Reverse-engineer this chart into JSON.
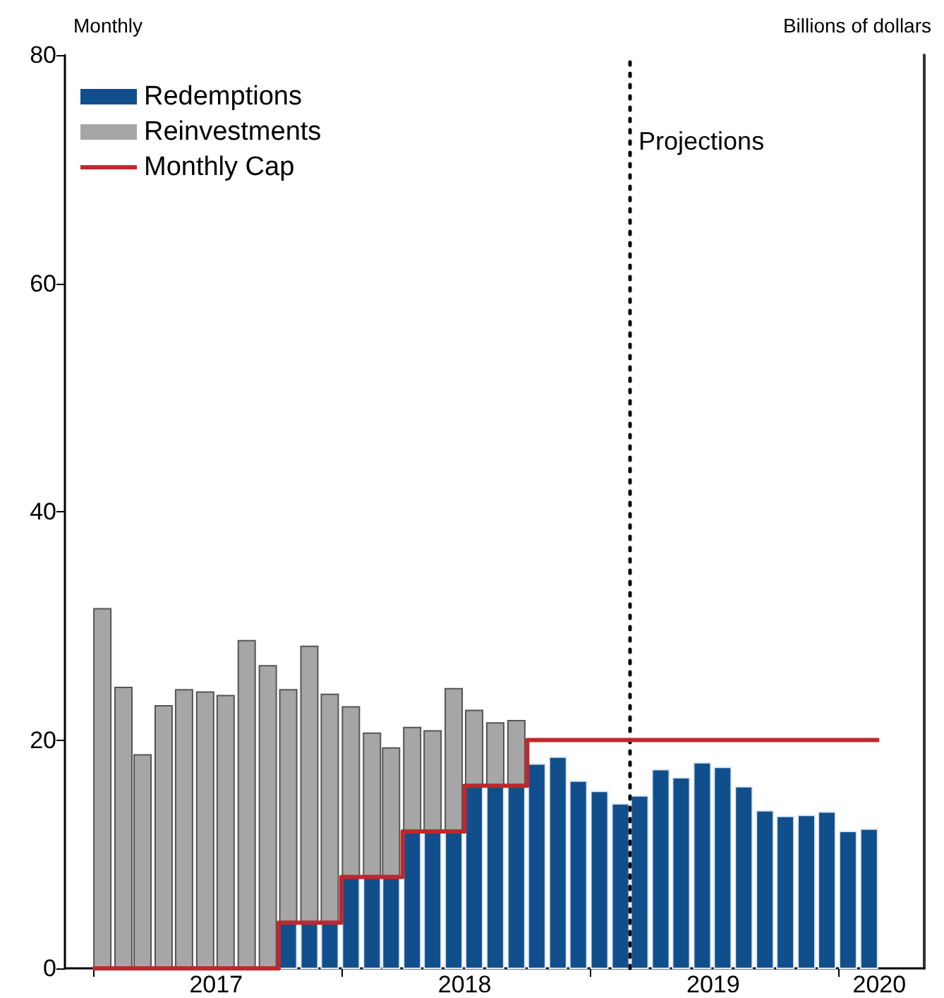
{
  "chart_data": {
    "type": "bar",
    "subtitle": "Monthly",
    "ylabel": "Billions of dollars",
    "stacked": true,
    "x": [
      "2017-01-15",
      "2017-02-15",
      "2017-03-15",
      "2017-04-15",
      "2017-05-15",
      "2017-06-15",
      "2017-07-15",
      "2017-08-15",
      "2017-09-15",
      "2017-10-15",
      "2017-11-15",
      "2017-12-15",
      "2018-01-15",
      "2018-02-15",
      "2018-03-15",
      "2018-04-15",
      "2018-05-15",
      "2018-06-15",
      "2018-07-15",
      "2018-08-15",
      "2018-09-15",
      "2018-10-15",
      "2018-11-15",
      "2018-12-15",
      "2019-01-15",
      "2019-02-15",
      "2019-03-15",
      "2019-04-15",
      "2019-05-15",
      "2019-06-15",
      "2019-07-15",
      "2019-08-15",
      "2019-09-15",
      "2019-10-15",
      "2019-11-15",
      "2019-12-15",
      "2020-01-15",
      "2020-02-15"
    ],
    "series": [
      {
        "name": "Redemptions",
        "color": "#114f8c",
        "values": [
          null,
          null,
          null,
          null,
          null,
          null,
          null,
          null,
          null,
          4,
          4,
          4,
          8,
          8,
          8,
          12,
          12,
          12,
          16,
          16,
          16,
          17.9,
          18.5,
          16.4,
          15.5,
          14.4,
          15.1,
          17.4,
          16.7,
          18.0,
          17.6,
          15.9,
          13.8,
          13.3,
          13.4,
          13.7,
          12.0,
          12.2
        ]
      },
      {
        "name": "Reinvestments",
        "color": "#a6a6a6",
        "values": [
          31.5,
          24.6,
          18.7,
          23.0,
          24.4,
          24.2,
          23.9,
          28.7,
          26.5,
          20.4,
          24.2,
          20.0,
          14.9,
          12.6,
          11.3,
          9.1,
          8.8,
          12.5,
          6.6,
          5.5,
          5.7,
          null,
          null,
          null,
          null,
          null,
          null,
          null,
          null,
          null,
          null,
          null,
          null,
          null,
          null,
          null,
          null,
          null
        ]
      },
      {
        "name": "Monthly Cap",
        "type": "step",
        "color": "#c0272d",
        "x": [
          "2017-01-01",
          "2017-10-01",
          "2018-01-01",
          "2018-04-01",
          "2018-07-01",
          "2018-10-01",
          "2020-03-01"
        ],
        "values": [
          0,
          4,
          8,
          12,
          16,
          20,
          20
        ]
      }
    ],
    "xlim": [
      "2016-11-21",
      "2020-05-06"
    ],
    "xticks": [
      {
        "value": "2017-01-01",
        "label": null
      },
      {
        "value": "2017-07-01",
        "label": "2017"
      },
      {
        "value": "2018-01-01",
        "label": null
      },
      {
        "value": "2018-07-01",
        "label": "2018"
      },
      {
        "value": "2019-01-01",
        "label": null
      },
      {
        "value": "2019-07-01",
        "label": "2019"
      },
      {
        "value": "2020-01-01",
        "label": null
      },
      {
        "value": "2020-03-01",
        "label": "2020"
      }
    ],
    "ylim": [
      0,
      80
    ],
    "yticks": [
      0,
      20,
      40,
      60,
      80
    ],
    "ref_lines": [
      {
        "axis": "x",
        "value": "2019-03-01",
        "label": "Projections",
        "color": "#000000",
        "line_style": "dotted"
      }
    ],
    "grid": false,
    "legend": "top left",
    "marker": "none"
  }
}
